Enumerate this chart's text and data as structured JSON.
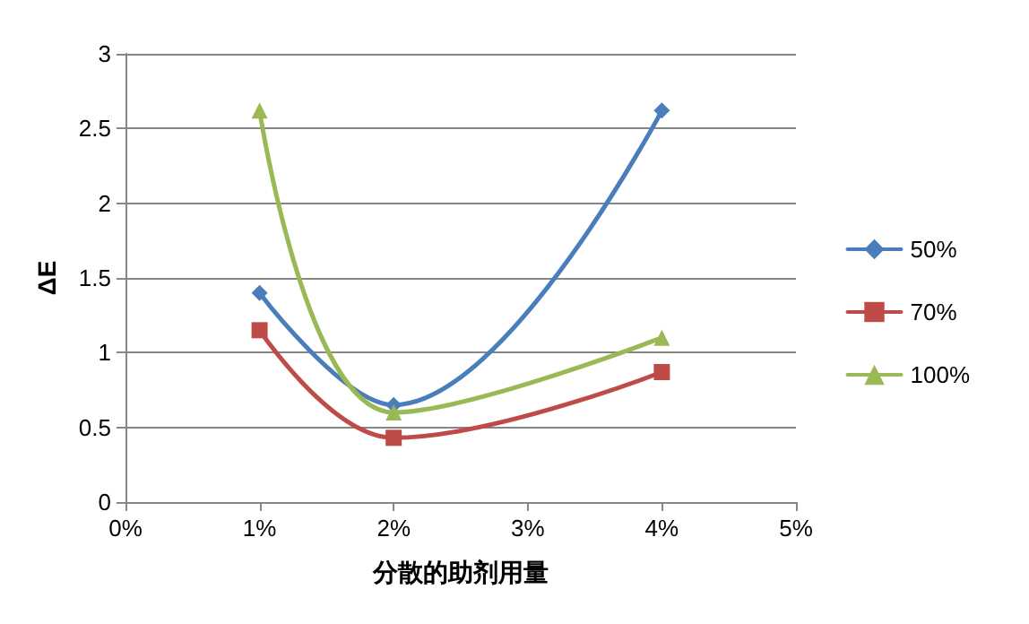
{
  "chart_data": {
    "type": "line",
    "xlabel": "分散的助剂用量",
    "ylabel": "ΔE",
    "x": [
      1,
      2,
      4
    ],
    "series": [
      {
        "name": "50%",
        "color": "#4a7ebb",
        "values": [
          1.4,
          0.65,
          2.62
        ],
        "marker": "diamond"
      },
      {
        "name": "70%",
        "color": "#be4b48",
        "values": [
          1.15,
          0.43,
          0.87
        ],
        "marker": "square"
      },
      {
        "name": "100%",
        "color": "#98b954",
        "values": [
          2.62,
          0.6,
          1.1
        ],
        "marker": "triangle"
      }
    ],
    "xlim": [
      0,
      5
    ],
    "xticks": [
      {
        "value": 0,
        "label": "0%"
      },
      {
        "value": 1,
        "label": "1%"
      },
      {
        "value": 2,
        "label": "2%"
      },
      {
        "value": 3,
        "label": "3%"
      },
      {
        "value": 4,
        "label": "4%"
      },
      {
        "value": 5,
        "label": "5%"
      }
    ],
    "ylim": [
      0,
      3
    ],
    "yticks": [
      0,
      0.5,
      1,
      1.5,
      2,
      2.5,
      3
    ],
    "grid": "y",
    "legend": "right",
    "line_style": "solid"
  }
}
